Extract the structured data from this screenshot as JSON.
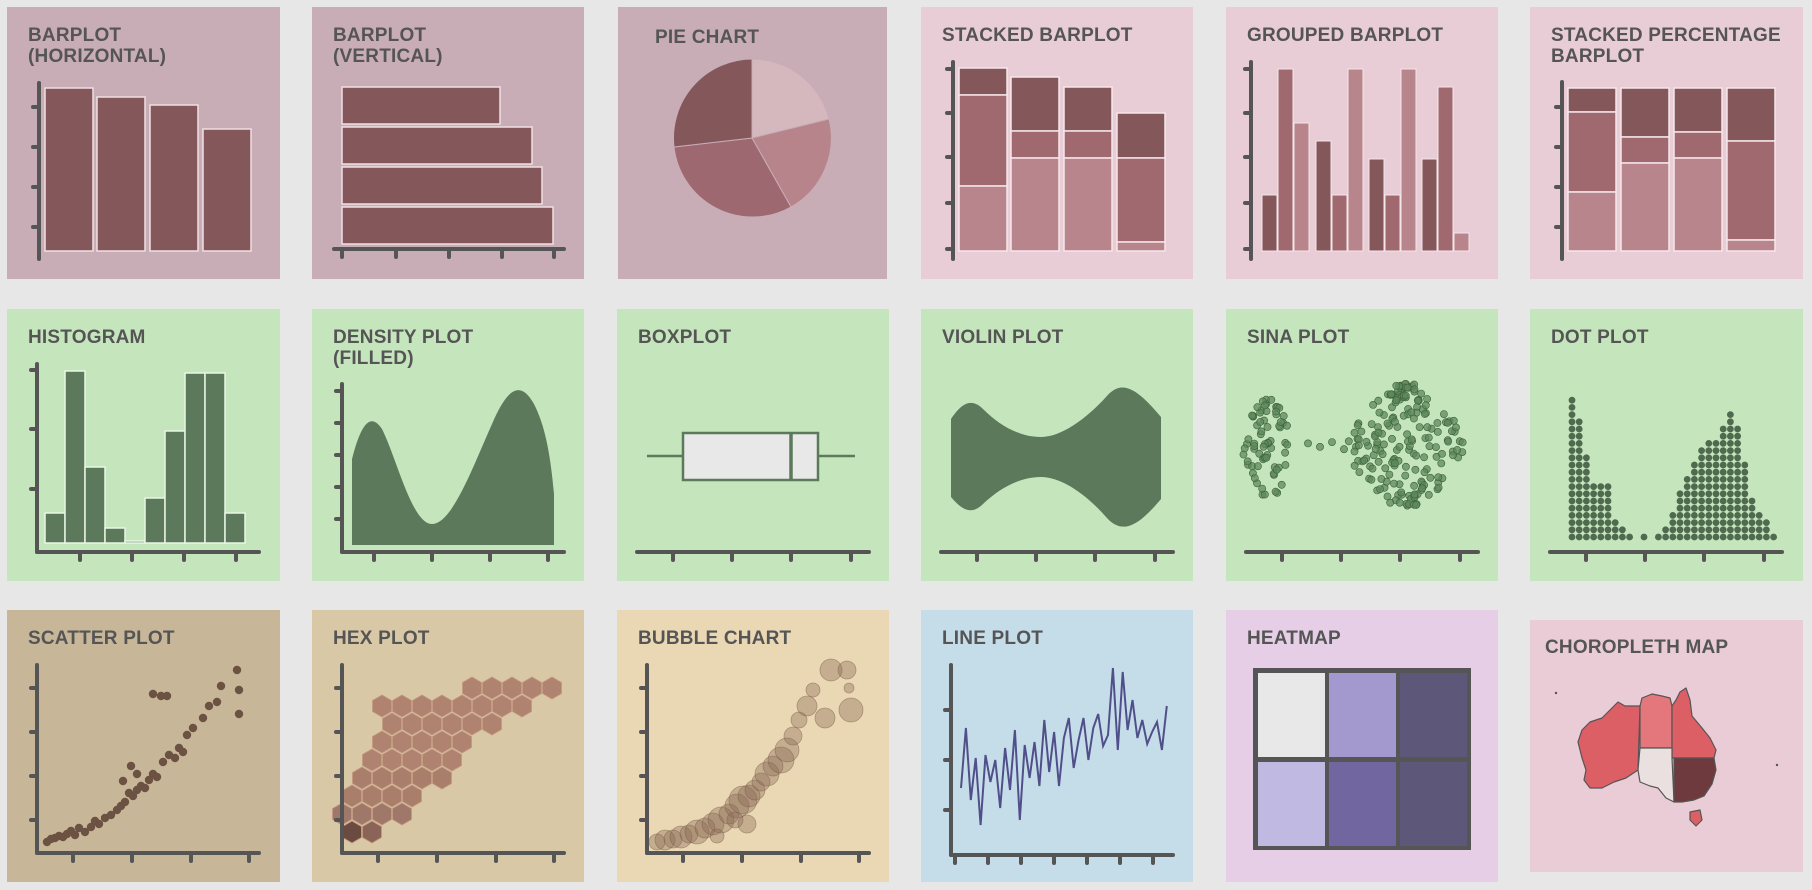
{
  "colors": {
    "background": "#e7e7e7",
    "axis": "#555555",
    "ranking_bg": "#c9adb6",
    "stack_bg": "#e8ccd6",
    "distribution_bg": "#c5e6bd",
    "correlation_bg_1": "#c7b697",
    "correlation_bg_2": "#d9c8a5",
    "correlation_bg_3": "#ead8b5",
    "evolution_bg": "#c5dde8",
    "heatmap_bg": "#e6cfe6",
    "map_bg": "#e9ccd6"
  },
  "tiles": [
    {
      "id": "barplot_horizontal",
      "title": "BARPLOT\n(HORIZONTAL)"
    },
    {
      "id": "barplot_vertical",
      "title": "BARPLOT\n(VERTICAL)"
    },
    {
      "id": "pie_chart",
      "title": "PIE CHART"
    },
    {
      "id": "stacked_barplot",
      "title": "STACKED BARPLOT"
    },
    {
      "id": "grouped_barplot",
      "title": "GROUPED BARPLOT"
    },
    {
      "id": "stacked_percentage_barplot",
      "title": "STACKED PERCENTAGE\nBARPLOT"
    },
    {
      "id": "histogram",
      "title": "HISTOGRAM"
    },
    {
      "id": "density_plot",
      "title": "DENSITY PLOT\n(FILLED)"
    },
    {
      "id": "boxplot",
      "title": "BOXPLOT"
    },
    {
      "id": "violin_plot",
      "title": "VIOLIN PLOT"
    },
    {
      "id": "sina_plot",
      "title": "SINA PLOT"
    },
    {
      "id": "dot_plot",
      "title": "DOT PLOT"
    },
    {
      "id": "scatter_plot",
      "title": "SCATTER PLOT"
    },
    {
      "id": "hex_plot",
      "title": "HEX PLOT"
    },
    {
      "id": "bubble_chart",
      "title": "BUBBLE CHART"
    },
    {
      "id": "line_plot",
      "title": "LINE PLOT"
    },
    {
      "id": "heatmap",
      "title": "HEATMAP"
    },
    {
      "id": "choropleth_map",
      "title": "CHOROPLETH MAP"
    }
  ]
}
